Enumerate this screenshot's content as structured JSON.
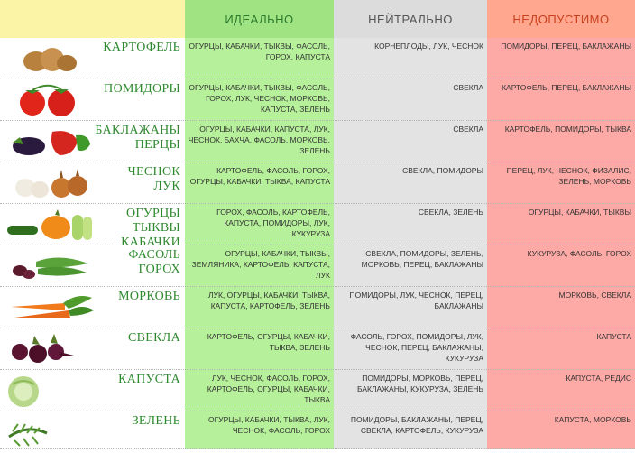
{
  "header": {
    "ideal": "ИДЕАЛЬНО",
    "neutral": "НЕЙТРАЛЬНО",
    "bad": "НЕДОПУСТИМО"
  },
  "rows": [
    {
      "name1": "КАРТОФЕЛЬ",
      "name2": "",
      "ideal": "ОГУРЦЫ, КАБАЧКИ, ТЫКВЫ, ФАСОЛЬ, ГОРОХ, КАПУСТА",
      "neutral": "КОРНЕПЛОДЫ, ЛУК, ЧЕСНОК",
      "bad": "ПОМИДОРЫ, ПЕРЕЦ, БАКЛАЖАНЫ"
    },
    {
      "name1": "ПОМИДОРЫ",
      "name2": "",
      "ideal": "ОГУРЦЫ, КАБАЧКИ, ТЫКВЫ, ФАСОЛЬ, ГОРОХ, ЛУК, ЧЕСНОК, МОРКОВЬ, КАПУСТА, ЗЕЛЕНЬ",
      "neutral": "СВЕКЛА",
      "bad": "КАРТОФЕЛЬ, ПЕРЕЦ, БАКЛАЖАНЫ"
    },
    {
      "name1": "БАКЛАЖАНЫ",
      "name2": "ПЕРЦЫ",
      "ideal": "ОГУРЦЫ, КАБАЧКИ, КАПУСТА, ЛУК, ЧЕСНОК, БАХЧА, ФАСОЛЬ, МОРКОВЬ, ЗЕЛЕНЬ",
      "neutral": "СВЕКЛА",
      "bad": "КАРТОФЕЛЬ, ПОМИДОРЫ, ТЫКВА"
    },
    {
      "name1": "ЧЕСНОК",
      "name2": "ЛУК",
      "ideal": "КАРТОФЕЛЬ, ФАСОЛЬ, ГОРОХ, ОГУРЦЫ, КАБАЧКИ, ТЫКВА, КАПУСТА",
      "neutral": "СВЕКЛА, ПОМИДОРЫ",
      "bad": "ПЕРЕЦ, ЛУК, ЧЕСНОК, ФИЗАЛИС, ЗЕЛЕНЬ, МОРКОВЬ"
    },
    {
      "name1": "ОГУРЦЫ",
      "name2": "ТЫКВЫ",
      "name3": "КАБАЧКИ",
      "ideal": "ГОРОХ, ФАСОЛЬ, КАРТОФЕЛЬ, КАПУСТА, ПОМИДОРЫ, ЛУК, КУКУРУЗА",
      "neutral": "СВЕКЛА, ЗЕЛЕНЬ",
      "bad": "ОГУРЦЫ, КАБАЧКИ, ТЫКВЫ"
    },
    {
      "name1": "ФАСОЛЬ",
      "name2": "ГОРОХ",
      "ideal": "ОГУРЦЫ, КАБАЧКИ, ТЫКВЫ, ЗЕМЛЯНИКА, КАРТОФЕЛЬ, КАПУСТА, ЛУК",
      "neutral": "СВЕКЛА, ПОМИДОРЫ, ЗЕЛЕНЬ, МОРКОВЬ, ПЕРЕЦ, БАКЛАЖАНЫ",
      "bad": "КУКУРУЗА, ФАСОЛЬ, ГОРОХ"
    },
    {
      "name1": "МОРКОВЬ",
      "name2": "",
      "ideal": "ЛУК, ОГУРЦЫ, КАБАЧКИ, ТЫКВА, КАПУСТА, КАРТОФЕЛЬ, ЗЕЛЕНЬ",
      "neutral": "ПОМИДОРЫ, ЛУК, ЧЕСНОК, ПЕРЕЦ, БАКЛАЖАНЫ",
      "bad": "МОРКОВЬ, СВЕКЛА"
    },
    {
      "name1": "СВЕКЛА",
      "name2": "",
      "ideal": "КАРТОФЕЛЬ, ОГУРЦЫ, КАБАЧКИ, ТЫКВА, ЗЕЛЕНЬ",
      "neutral": "ФАСОЛЬ, ГОРОХ, ПОМИДОРЫ, ЛУК, ЧЕСНОК, ПЕРЕЦ, БАКЛАЖАНЫ, КУКУРУЗА",
      "bad": "КАПУСТА"
    },
    {
      "name1": "КАПУСТА",
      "name2": "",
      "ideal": "ЛУК, ЧЕСНОК, ФАСОЛЬ, ГОРОХ, КАРТОФЕЛЬ, ОГУРЦЫ, КАБАЧКИ, ТЫКВА",
      "neutral": "ПОМИДОРЫ, МОРКОВЬ, ПЕРЕЦ, БАКЛАЖАНЫ, КУКУРУЗА, ЗЕЛЕНЬ",
      "bad": "КАПУСТА, РЕДИС"
    },
    {
      "name1": "ЗЕЛЕНЬ",
      "name2": "",
      "ideal": "ОГУРЦЫ, КАБАЧКИ, ТЫКВА, ЛУК, ЧЕСНОК, ФАСОЛЬ, ГОРОХ",
      "neutral": "ПОМИДОРЫ, БАКЛАЖАНЫ, ПЕРЕЦ, СВЕКЛА, КАРТОФЕЛЬ, КУКУРУЗА",
      "bad": "КАПУСТА, МОРКОВЬ"
    }
  ],
  "icons": [
    "potato-icon",
    "tomato-icon",
    "eggplant-pepper-icon",
    "garlic-onion-icon",
    "cucumber-pumpkin-icon",
    "beans-peas-icon",
    "carrot-icon",
    "beet-icon",
    "cabbage-icon",
    "dill-icon"
  ],
  "colors": {
    "ideal_bg": "#b6f09b",
    "neutral_bg": "#e3e3e3",
    "bad_bg": "#fdaaa6",
    "corner_bg": "#fbf3a6",
    "name_color": "#2f8a2f"
  }
}
